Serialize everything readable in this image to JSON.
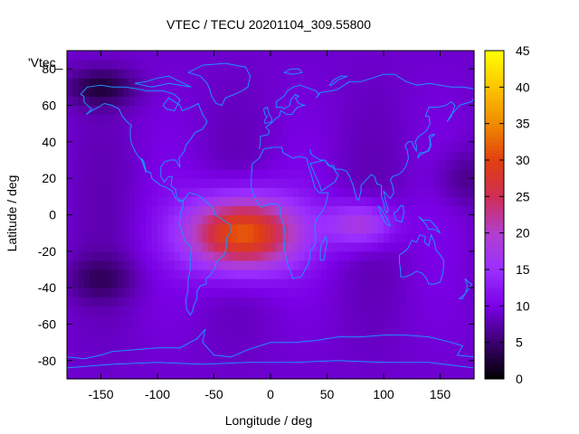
{
  "chart_data": {
    "type": "heatmap",
    "title": "VTEC / TECU 20201104_309.55800",
    "xlabel": "Longitude / deg",
    "ylabel": "Latitude / deg",
    "xlim": [
      -180,
      180
    ],
    "ylim": [
      -90,
      90
    ],
    "x_ticks": [
      -150,
      -100,
      -50,
      0,
      50,
      100,
      150
    ],
    "y_ticks": [
      -80,
      -60,
      -40,
      -20,
      0,
      20,
      40,
      60,
      80
    ],
    "colorbar": {
      "min": 0,
      "max": 45,
      "ticks": [
        0,
        5,
        10,
        15,
        20,
        25,
        30,
        35,
        40,
        45
      ],
      "colors": [
        "#000000",
        "#3a006e",
        "#7a00e6",
        "#9a2fff",
        "#b23fcf",
        "#cf2d55",
        "#e13f10",
        "#f08a00",
        "#fbc500",
        "#ffff00"
      ]
    },
    "overlay_label": "'Vtec_",
    "overlay": "coastlines",
    "coastline_color": "#1e90ff",
    "field": {
      "background_tecu": 9,
      "blobs": [
        {
          "lon": -25,
          "lat": -10,
          "sigma_lon": 48,
          "sigma_lat": 20,
          "amp": 24
        },
        {
          "lon": 80,
          "lat": -5,
          "sigma_lon": 30,
          "sigma_lat": 12,
          "amp": 10
        },
        {
          "lon": -150,
          "lat": 70,
          "sigma_lon": 30,
          "sigma_lat": 10,
          "amp": -6
        },
        {
          "lon": -150,
          "lat": -35,
          "sigma_lon": 30,
          "sigma_lat": 12,
          "amp": -4
        },
        {
          "lon": 170,
          "lat": 20,
          "sigma_lon": 25,
          "sigma_lat": 15,
          "amp": -3
        }
      ]
    }
  }
}
